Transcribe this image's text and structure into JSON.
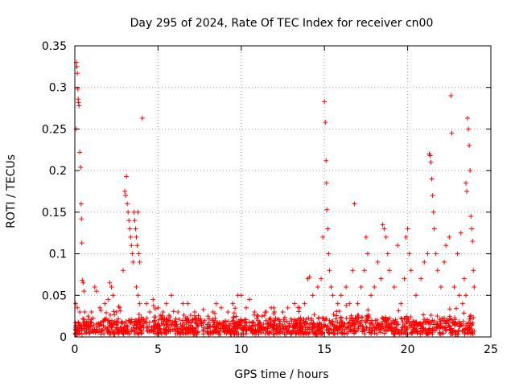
{
  "chart_data": {
    "type": "scatter",
    "title": "Day 295 of 2024, Rate Of TEC Index for receiver cn00",
    "xlabel": "GPS time / hours",
    "ylabel": "ROTI / TECUs",
    "xlim": [
      0,
      25
    ],
    "ylim": [
      0,
      0.35
    ],
    "xticks": [
      0,
      5,
      10,
      15,
      20,
      25
    ],
    "yticks": [
      0,
      0.05,
      0.1,
      0.15,
      0.2,
      0.25,
      0.3,
      0.35
    ],
    "xtick_labels": [
      "0",
      "5",
      "10",
      "15",
      "20",
      "25"
    ],
    "ytick_labels": [
      "0",
      "0.05",
      "0.1",
      "0.15",
      "0.2",
      "0.25",
      "0.3",
      "0.35"
    ],
    "grid": true,
    "marker": "+",
    "color": "#ff0000",
    "series": [
      {
        "name": "ROTI",
        "points": [
          [
            0.1,
            0.33
          ],
          [
            0.12,
            0.325
          ],
          [
            0.15,
            0.317
          ],
          [
            0.18,
            0.298
          ],
          [
            0.2,
            0.286
          ],
          [
            0.22,
            0.282
          ],
          [
            0.25,
            0.278
          ],
          [
            0.08,
            0.25
          ],
          [
            0.3,
            0.222
          ],
          [
            0.35,
            0.204
          ],
          [
            0.38,
            0.16
          ],
          [
            0.4,
            0.142
          ],
          [
            0.42,
            0.113
          ],
          [
            0.45,
            0.068
          ],
          [
            0.5,
            0.065
          ],
          [
            0.55,
            0.055
          ],
          [
            0.05,
            0.04
          ],
          [
            0.15,
            0.035
          ],
          [
            0.3,
            0.03
          ],
          [
            0.6,
            0.03
          ],
          [
            0.8,
            0.025
          ],
          [
            1.0,
            0.03
          ],
          [
            1.2,
            0.06
          ],
          [
            1.3,
            0.055
          ],
          [
            1.5,
            0.035
          ],
          [
            1.8,
            0.04
          ],
          [
            2.0,
            0.045
          ],
          [
            2.1,
            0.065
          ],
          [
            2.2,
            0.06
          ],
          [
            2.3,
            0.05
          ],
          [
            2.5,
            0.03
          ],
          [
            2.7,
            0.035
          ],
          [
            2.9,
            0.08
          ],
          [
            3.0,
            0.175
          ],
          [
            3.05,
            0.17
          ],
          [
            3.1,
            0.193
          ],
          [
            3.15,
            0.16
          ],
          [
            3.2,
            0.15
          ],
          [
            3.25,
            0.14
          ],
          [
            3.3,
            0.13
          ],
          [
            3.35,
            0.12
          ],
          [
            3.4,
            0.11
          ],
          [
            3.45,
            0.1
          ],
          [
            3.5,
            0.09
          ],
          [
            3.55,
            0.15
          ],
          [
            3.6,
            0.14
          ],
          [
            3.65,
            0.13
          ],
          [
            3.7,
            0.12
          ],
          [
            3.75,
            0.11
          ],
          [
            3.8,
            0.15
          ],
          [
            3.85,
            0.1
          ],
          [
            3.9,
            0.09
          ],
          [
            3.7,
            0.06
          ],
          [
            3.8,
            0.05
          ],
          [
            3.9,
            0.04
          ],
          [
            4.05,
            0.263
          ],
          [
            4.3,
            0.04
          ],
          [
            4.5,
            0.03
          ],
          [
            4.7,
            0.045
          ],
          [
            5.0,
            0.035
          ],
          [
            5.3,
            0.03
          ],
          [
            5.5,
            0.04
          ],
          [
            5.8,
            0.05
          ],
          [
            6.2,
            0.03
          ],
          [
            6.5,
            0.04
          ],
          [
            6.8,
            0.04
          ],
          [
            7.2,
            0.03
          ],
          [
            7.5,
            0.02
          ],
          [
            7.8,
            0.02
          ],
          [
            8.0,
            0.025
          ],
          [
            8.3,
            0.03
          ],
          [
            8.5,
            0.04
          ],
          [
            8.8,
            0.035
          ],
          [
            9.2,
            0.03
          ],
          [
            9.5,
            0.04
          ],
          [
            9.8,
            0.05
          ],
          [
            10.0,
            0.05
          ],
          [
            10.3,
            0.035
          ],
          [
            10.5,
            0.045
          ],
          [
            10.8,
            0.03
          ],
          [
            11.0,
            0.025
          ],
          [
            11.5,
            0.03
          ],
          [
            11.8,
            0.035
          ],
          [
            12.0,
            0.03
          ],
          [
            12.5,
            0.03
          ],
          [
            12.8,
            0.035
          ],
          [
            13.2,
            0.04
          ],
          [
            13.5,
            0.035
          ],
          [
            13.8,
            0.04
          ],
          [
            14.0,
            0.07
          ],
          [
            14.1,
            0.072
          ],
          [
            14.3,
            0.05
          ],
          [
            14.6,
            0.06
          ],
          [
            14.8,
            0.07
          ],
          [
            14.9,
            0.12
          ],
          [
            15.0,
            0.283
          ],
          [
            15.05,
            0.258
          ],
          [
            15.1,
            0.212
          ],
          [
            15.12,
            0.185
          ],
          [
            15.15,
            0.153
          ],
          [
            15.2,
            0.13
          ],
          [
            15.25,
            0.1
          ],
          [
            15.3,
            0.08
          ],
          [
            15.4,
            0.06
          ],
          [
            15.5,
            0.05
          ],
          [
            15.8,
            0.04
          ],
          [
            16.0,
            0.05
          ],
          [
            16.3,
            0.06
          ],
          [
            16.5,
            0.04
          ],
          [
            16.7,
            0.08
          ],
          [
            16.8,
            0.16
          ],
          [
            17.0,
            0.04
          ],
          [
            17.2,
            0.06
          ],
          [
            17.4,
            0.08
          ],
          [
            17.5,
            0.12
          ],
          [
            17.6,
            0.1
          ],
          [
            17.8,
            0.05
          ],
          [
            18.0,
            0.06
          ],
          [
            18.2,
            0.09
          ],
          [
            18.4,
            0.07
          ],
          [
            18.5,
            0.135
          ],
          [
            18.6,
            0.13
          ],
          [
            18.7,
            0.12
          ],
          [
            18.8,
            0.1
          ],
          [
            18.9,
            0.08
          ],
          [
            19.2,
            0.06
          ],
          [
            19.4,
            0.11
          ],
          [
            19.6,
            0.04
          ],
          [
            19.8,
            0.07
          ],
          [
            19.9,
            0.12
          ],
          [
            20.0,
            0.13
          ],
          [
            20.1,
            0.1
          ],
          [
            20.2,
            0.08
          ],
          [
            20.5,
            0.05
          ],
          [
            20.8,
            0.07
          ],
          [
            21.0,
            0.09
          ],
          [
            21.2,
            0.1
          ],
          [
            21.3,
            0.22
          ],
          [
            21.35,
            0.218
          ],
          [
            21.4,
            0.21
          ],
          [
            21.45,
            0.19
          ],
          [
            21.5,
            0.17
          ],
          [
            21.55,
            0.15
          ],
          [
            21.6,
            0.13
          ],
          [
            21.7,
            0.1
          ],
          [
            21.8,
            0.08
          ],
          [
            22.0,
            0.06
          ],
          [
            22.2,
            0.09
          ],
          [
            22.3,
            0.11
          ],
          [
            22.5,
            0.12
          ],
          [
            22.6,
            0.29
          ],
          [
            22.65,
            0.245
          ],
          [
            22.8,
            0.06
          ],
          [
            23.0,
            0.1
          ],
          [
            23.2,
            0.125
          ],
          [
            23.4,
            0.07
          ],
          [
            23.5,
            0.185
          ],
          [
            23.55,
            0.175
          ],
          [
            23.6,
            0.263
          ],
          [
            23.65,
            0.25
          ],
          [
            23.7,
            0.23
          ],
          [
            23.75,
            0.2
          ],
          [
            23.8,
            0.145
          ],
          [
            23.85,
            0.13
          ],
          [
            23.9,
            0.115
          ],
          [
            23.95,
            0.08
          ],
          [
            24.0,
            0.06
          ],
          [
            23.5,
            0.05
          ],
          [
            23.3,
            0.04
          ],
          [
            23.1,
            0.05
          ]
        ]
      }
    ]
  }
}
